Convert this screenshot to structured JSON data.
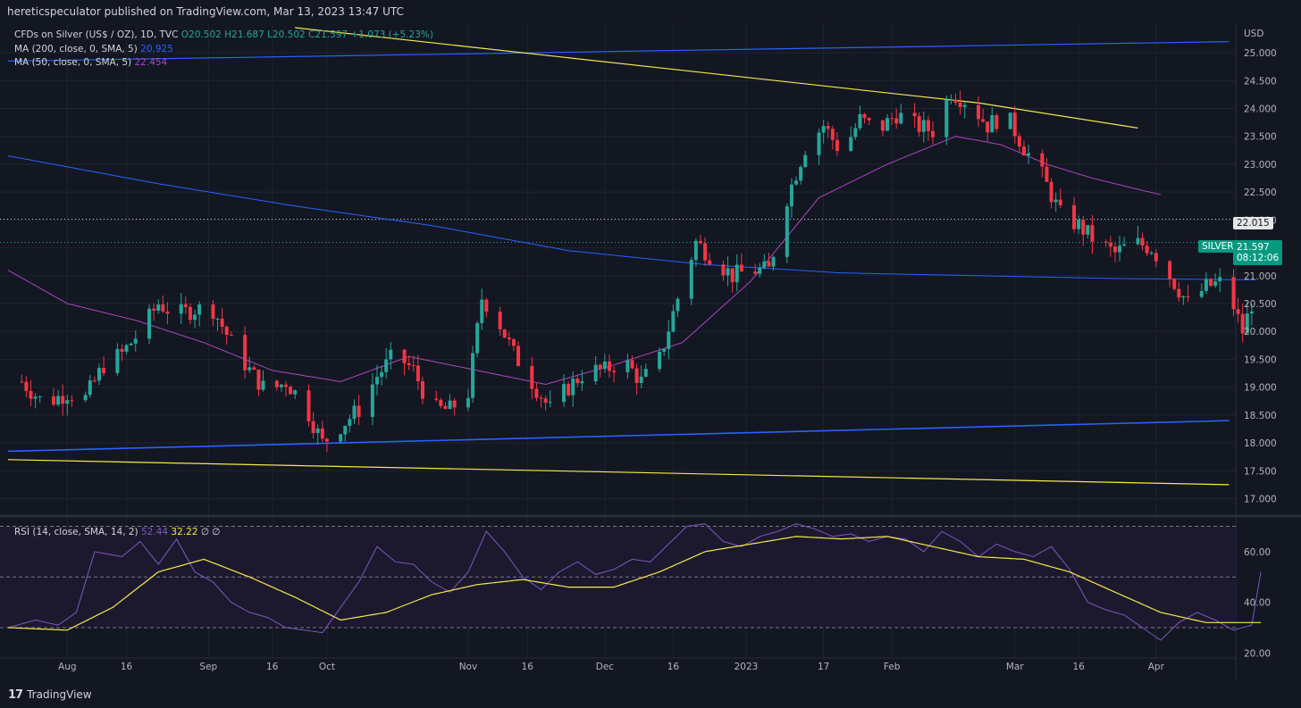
{
  "header": {
    "published_text": "hereticspeculator published on TradingView.com, Mar 13, 2023 13:47 UTC"
  },
  "legend": {
    "symbol": "CFDs on Silver (US$ / OZ), 1D, TVC",
    "ohlc": "O20.502  H21.687  L20.502  C21.597 +1.073 (+5.23%)",
    "ma200_label": "MA (200, close, 0, SMA, 5)",
    "ma200_value": "20.925",
    "ma50_label": "MA (50, close, 0, SMA, 5)",
    "ma50_value": "22.454"
  },
  "rsi_legend": {
    "label": "RSI (14, close, SMA, 14, 2)",
    "value1": "52.44",
    "value2": "32.22",
    "extra": "∅  ∅"
  },
  "price_tags": {
    "marked_level": "22.015",
    "symbol": "SILVER",
    "last_price": "21.597",
    "countdown": "08:12:06"
  },
  "footer": {
    "brand": "TradingView"
  },
  "colors": {
    "background": "#131722",
    "up_candle": "#26a69a",
    "down_candle": "#f23645",
    "ma200": "#2962ff",
    "ma50": "#ab47bc",
    "trend_blue": "#2962ff",
    "trend_yellow": "#f5e94b",
    "rsi": "#7e57c2",
    "rsi_ma": "#f5e94b"
  },
  "chart_data": [
    {
      "type": "candlestick",
      "currency": "USD",
      "ylim": [
        16.8,
        25.45
      ],
      "y_ticks": [
        "25.000",
        "24.500",
        "24.000",
        "23.500",
        "23.000",
        "22.500",
        "22.000",
        "21.500",
        "21.000",
        "20.500",
        "20.000",
        "19.500",
        "19.000",
        "18.500",
        "18.000",
        "17.500",
        "17.000"
      ],
      "x_ticks": [
        "Aug",
        "16",
        "Sep",
        "16",
        "Oct",
        "Nov",
        "16",
        "Dec",
        "16",
        "2023",
        "17",
        "Feb",
        "Mar",
        "16",
        "Apr"
      ],
      "x_tick_days": [
        10,
        23,
        41,
        55,
        67,
        98,
        111,
        128,
        143,
        159,
        176,
        191,
        218,
        232,
        249
      ],
      "x_day_range": [
        -3,
        265
      ],
      "candles_from_day": 0,
      "anchors": [
        [
          0,
          19.1
        ],
        [
          5,
          18.7
        ],
        [
          10,
          18.9
        ],
        [
          14,
          18.8
        ],
        [
          18,
          19.4
        ],
        [
          22,
          19.6
        ],
        [
          26,
          20.0
        ],
        [
          30,
          20.5
        ],
        [
          34,
          20.3
        ],
        [
          38,
          20.4
        ],
        [
          42,
          20.4
        ],
        [
          46,
          19.8
        ],
        [
          50,
          19.3
        ],
        [
          54,
          18.9
        ],
        [
          58,
          19.1
        ],
        [
          62,
          18.7
        ],
        [
          66,
          18.0
        ],
        [
          70,
          18.3
        ],
        [
          74,
          18.6
        ],
        [
          78,
          19.2
        ],
        [
          82,
          19.6
        ],
        [
          86,
          19.3
        ],
        [
          90,
          18.6
        ],
        [
          94,
          18.6
        ],
        [
          98,
          18.9
        ],
        [
          101,
          20.6
        ],
        [
          104,
          20.3
        ],
        [
          108,
          19.6
        ],
        [
          112,
          19.1
        ],
        [
          116,
          18.6
        ],
        [
          120,
          19.0
        ],
        [
          124,
          19.3
        ],
        [
          128,
          19.3
        ],
        [
          132,
          19.5
        ],
        [
          136,
          19.1
        ],
        [
          140,
          19.5
        ],
        [
          144,
          20.6
        ],
        [
          148,
          21.6
        ],
        [
          152,
          21.3
        ],
        [
          156,
          21.0
        ],
        [
          160,
          21.1
        ],
        [
          164,
          21.1
        ],
        [
          168,
          22.4
        ],
        [
          172,
          23.3
        ],
        [
          176,
          23.7
        ],
        [
          180,
          23.2
        ],
        [
          184,
          23.8
        ],
        [
          188,
          23.6
        ],
        [
          192,
          23.9
        ],
        [
          196,
          23.7
        ],
        [
          200,
          23.6
        ],
        [
          204,
          24.3
        ],
        [
          208,
          24.1
        ],
        [
          212,
          23.7
        ],
        [
          216,
          23.9
        ],
        [
          220,
          23.3
        ],
        [
          224,
          22.8
        ],
        [
          228,
          22.1
        ],
        [
          232,
          21.9
        ],
        [
          236,
          21.6
        ],
        [
          240,
          21.4
        ],
        [
          244,
          21.6
        ],
        [
          248,
          21.5
        ],
        [
          252,
          21.0
        ],
        [
          256,
          20.5
        ],
        [
          260,
          20.8
        ],
        [
          264,
          20.9
        ],
        [
          268,
          20.0
        ],
        [
          270,
          20.5
        ],
        [
          271,
          21.597
        ]
      ],
      "ma200": [
        [
          -3,
          23.15
        ],
        [
          30,
          22.65
        ],
        [
          60,
          22.25
        ],
        [
          90,
          21.9
        ],
        [
          120,
          21.45
        ],
        [
          150,
          21.2
        ],
        [
          180,
          21.05
        ],
        [
          210,
          21.0
        ],
        [
          240,
          20.95
        ],
        [
          271,
          20.925
        ]
      ],
      "ma50": [
        [
          -3,
          21.1
        ],
        [
          10,
          20.5
        ],
        [
          25,
          20.2
        ],
        [
          40,
          19.8
        ],
        [
          55,
          19.3
        ],
        [
          70,
          19.1
        ],
        [
          85,
          19.55
        ],
        [
          100,
          19.3
        ],
        [
          115,
          19.05
        ],
        [
          130,
          19.4
        ],
        [
          145,
          19.8
        ],
        [
          160,
          20.9
        ],
        [
          175,
          22.4
        ],
        [
          190,
          23.0
        ],
        [
          205,
          23.5
        ],
        [
          215,
          23.35
        ],
        [
          225,
          23.0
        ],
        [
          235,
          22.75
        ],
        [
          245,
          22.55
        ],
        [
          250,
          22.454
        ]
      ],
      "trendlines": [
        {
          "name": "upper-blue",
          "color": "#2962ff",
          "points": [
            [
              -3,
              24.85
            ],
            [
              265,
              25.2
            ]
          ]
        },
        {
          "name": "lower-blue",
          "color": "#2962ff",
          "points": [
            [
              -3,
              17.85
            ],
            [
              265,
              18.4
            ]
          ]
        },
        {
          "name": "upper-yellow",
          "color": "#f5e94b",
          "points": [
            [
              60,
              25.45
            ],
            [
              210,
              24.1
            ],
            [
              245,
              23.65
            ]
          ]
        },
        {
          "name": "lower-yellow",
          "color": "#f5e94b",
          "points": [
            [
              -3,
              17.7
            ],
            [
              265,
              17.25
            ]
          ]
        }
      ],
      "marked_level": 22.015,
      "last_price": 21.597
    },
    {
      "type": "line",
      "name": "RSI",
      "ylim": [
        18,
        73
      ],
      "y_ticks": [
        "60.00",
        "40.00",
        "20.00"
      ],
      "bands": [
        70,
        50,
        30
      ],
      "rsi": [
        [
          -3,
          30
        ],
        [
          3,
          33
        ],
        [
          8,
          31
        ],
        [
          12,
          36
        ],
        [
          16,
          60
        ],
        [
          22,
          58
        ],
        [
          26,
          64
        ],
        [
          30,
          55
        ],
        [
          34,
          65
        ],
        [
          38,
          52
        ],
        [
          42,
          48
        ],
        [
          46,
          40
        ],
        [
          50,
          36
        ],
        [
          54,
          34
        ],
        [
          58,
          30
        ],
        [
          62,
          29
        ],
        [
          66,
          28
        ],
        [
          70,
          38
        ],
        [
          74,
          48
        ],
        [
          78,
          62
        ],
        [
          82,
          56
        ],
        [
          86,
          55
        ],
        [
          90,
          48
        ],
        [
          94,
          44
        ],
        [
          98,
          52
        ],
        [
          102,
          68
        ],
        [
          106,
          60
        ],
        [
          110,
          50
        ],
        [
          114,
          45
        ],
        [
          118,
          52
        ],
        [
          122,
          56
        ],
        [
          126,
          51
        ],
        [
          130,
          53
        ],
        [
          134,
          57
        ],
        [
          138,
          56
        ],
        [
          142,
          63
        ],
        [
          146,
          70
        ],
        [
          150,
          71
        ],
        [
          154,
          64
        ],
        [
          158,
          62
        ],
        [
          162,
          66
        ],
        [
          166,
          68
        ],
        [
          170,
          71
        ],
        [
          174,
          69
        ],
        [
          178,
          66
        ],
        [
          182,
          67
        ],
        [
          186,
          64
        ],
        [
          190,
          66
        ],
        [
          194,
          65
        ],
        [
          198,
          60
        ],
        [
          202,
          68
        ],
        [
          206,
          64
        ],
        [
          210,
          58
        ],
        [
          214,
          63
        ],
        [
          218,
          60
        ],
        [
          222,
          58
        ],
        [
          226,
          62
        ],
        [
          230,
          53
        ],
        [
          234,
          40
        ],
        [
          238,
          37
        ],
        [
          242,
          35
        ],
        [
          246,
          30
        ],
        [
          250,
          25
        ],
        [
          254,
          32
        ],
        [
          258,
          36
        ],
        [
          262,
          33
        ],
        [
          266,
          29
        ],
        [
          270,
          31
        ],
        [
          272,
          52
        ]
      ],
      "rsi_ma": [
        [
          -3,
          30
        ],
        [
          10,
          29
        ],
        [
          20,
          38
        ],
        [
          30,
          52
        ],
        [
          40,
          57
        ],
        [
          50,
          50
        ],
        [
          60,
          42
        ],
        [
          70,
          33
        ],
        [
          80,
          36
        ],
        [
          90,
          43
        ],
        [
          100,
          47
        ],
        [
          110,
          49
        ],
        [
          120,
          46
        ],
        [
          130,
          46
        ],
        [
          140,
          52
        ],
        [
          150,
          60
        ],
        [
          160,
          63
        ],
        [
          170,
          66
        ],
        [
          180,
          65
        ],
        [
          190,
          66
        ],
        [
          200,
          62
        ],
        [
          210,
          58
        ],
        [
          220,
          57
        ],
        [
          230,
          52
        ],
        [
          240,
          44
        ],
        [
          250,
          36
        ],
        [
          260,
          32
        ],
        [
          272,
          32
        ]
      ]
    }
  ]
}
